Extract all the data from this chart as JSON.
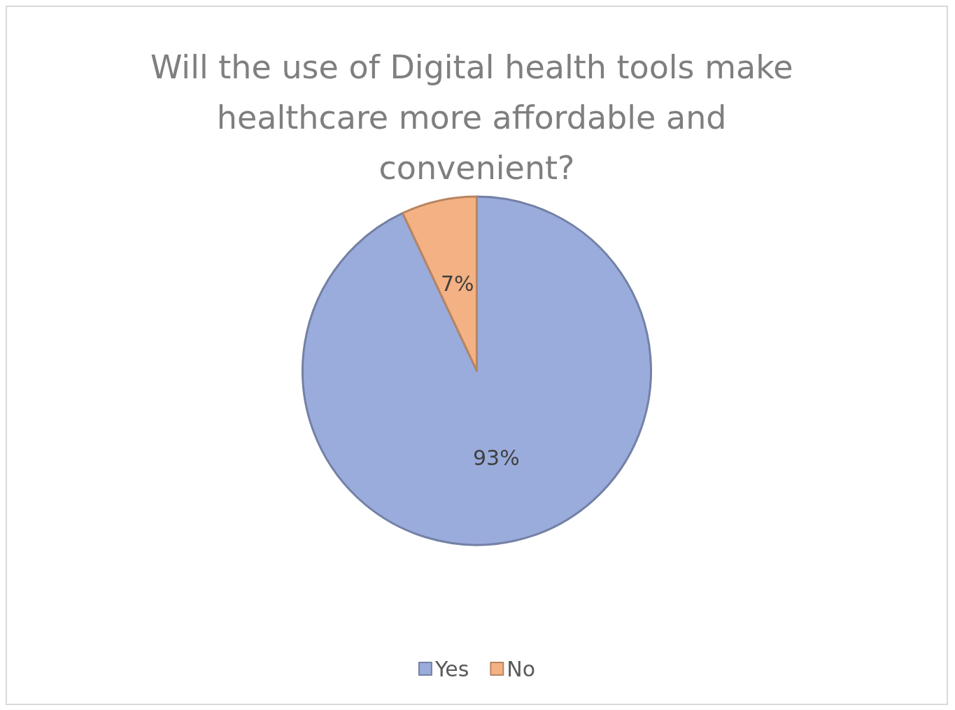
{
  "chart_data": {
    "type": "pie",
    "title": "Will the use of Digital health tools make healthcare more affordable and convenient?",
    "categories": [
      "Yes",
      "No"
    ],
    "values": [
      93,
      7
    ],
    "value_labels": [
      "93%",
      "7%"
    ],
    "colors": [
      "#9aacdc",
      "#f4b183"
    ],
    "legend": "bottom"
  }
}
